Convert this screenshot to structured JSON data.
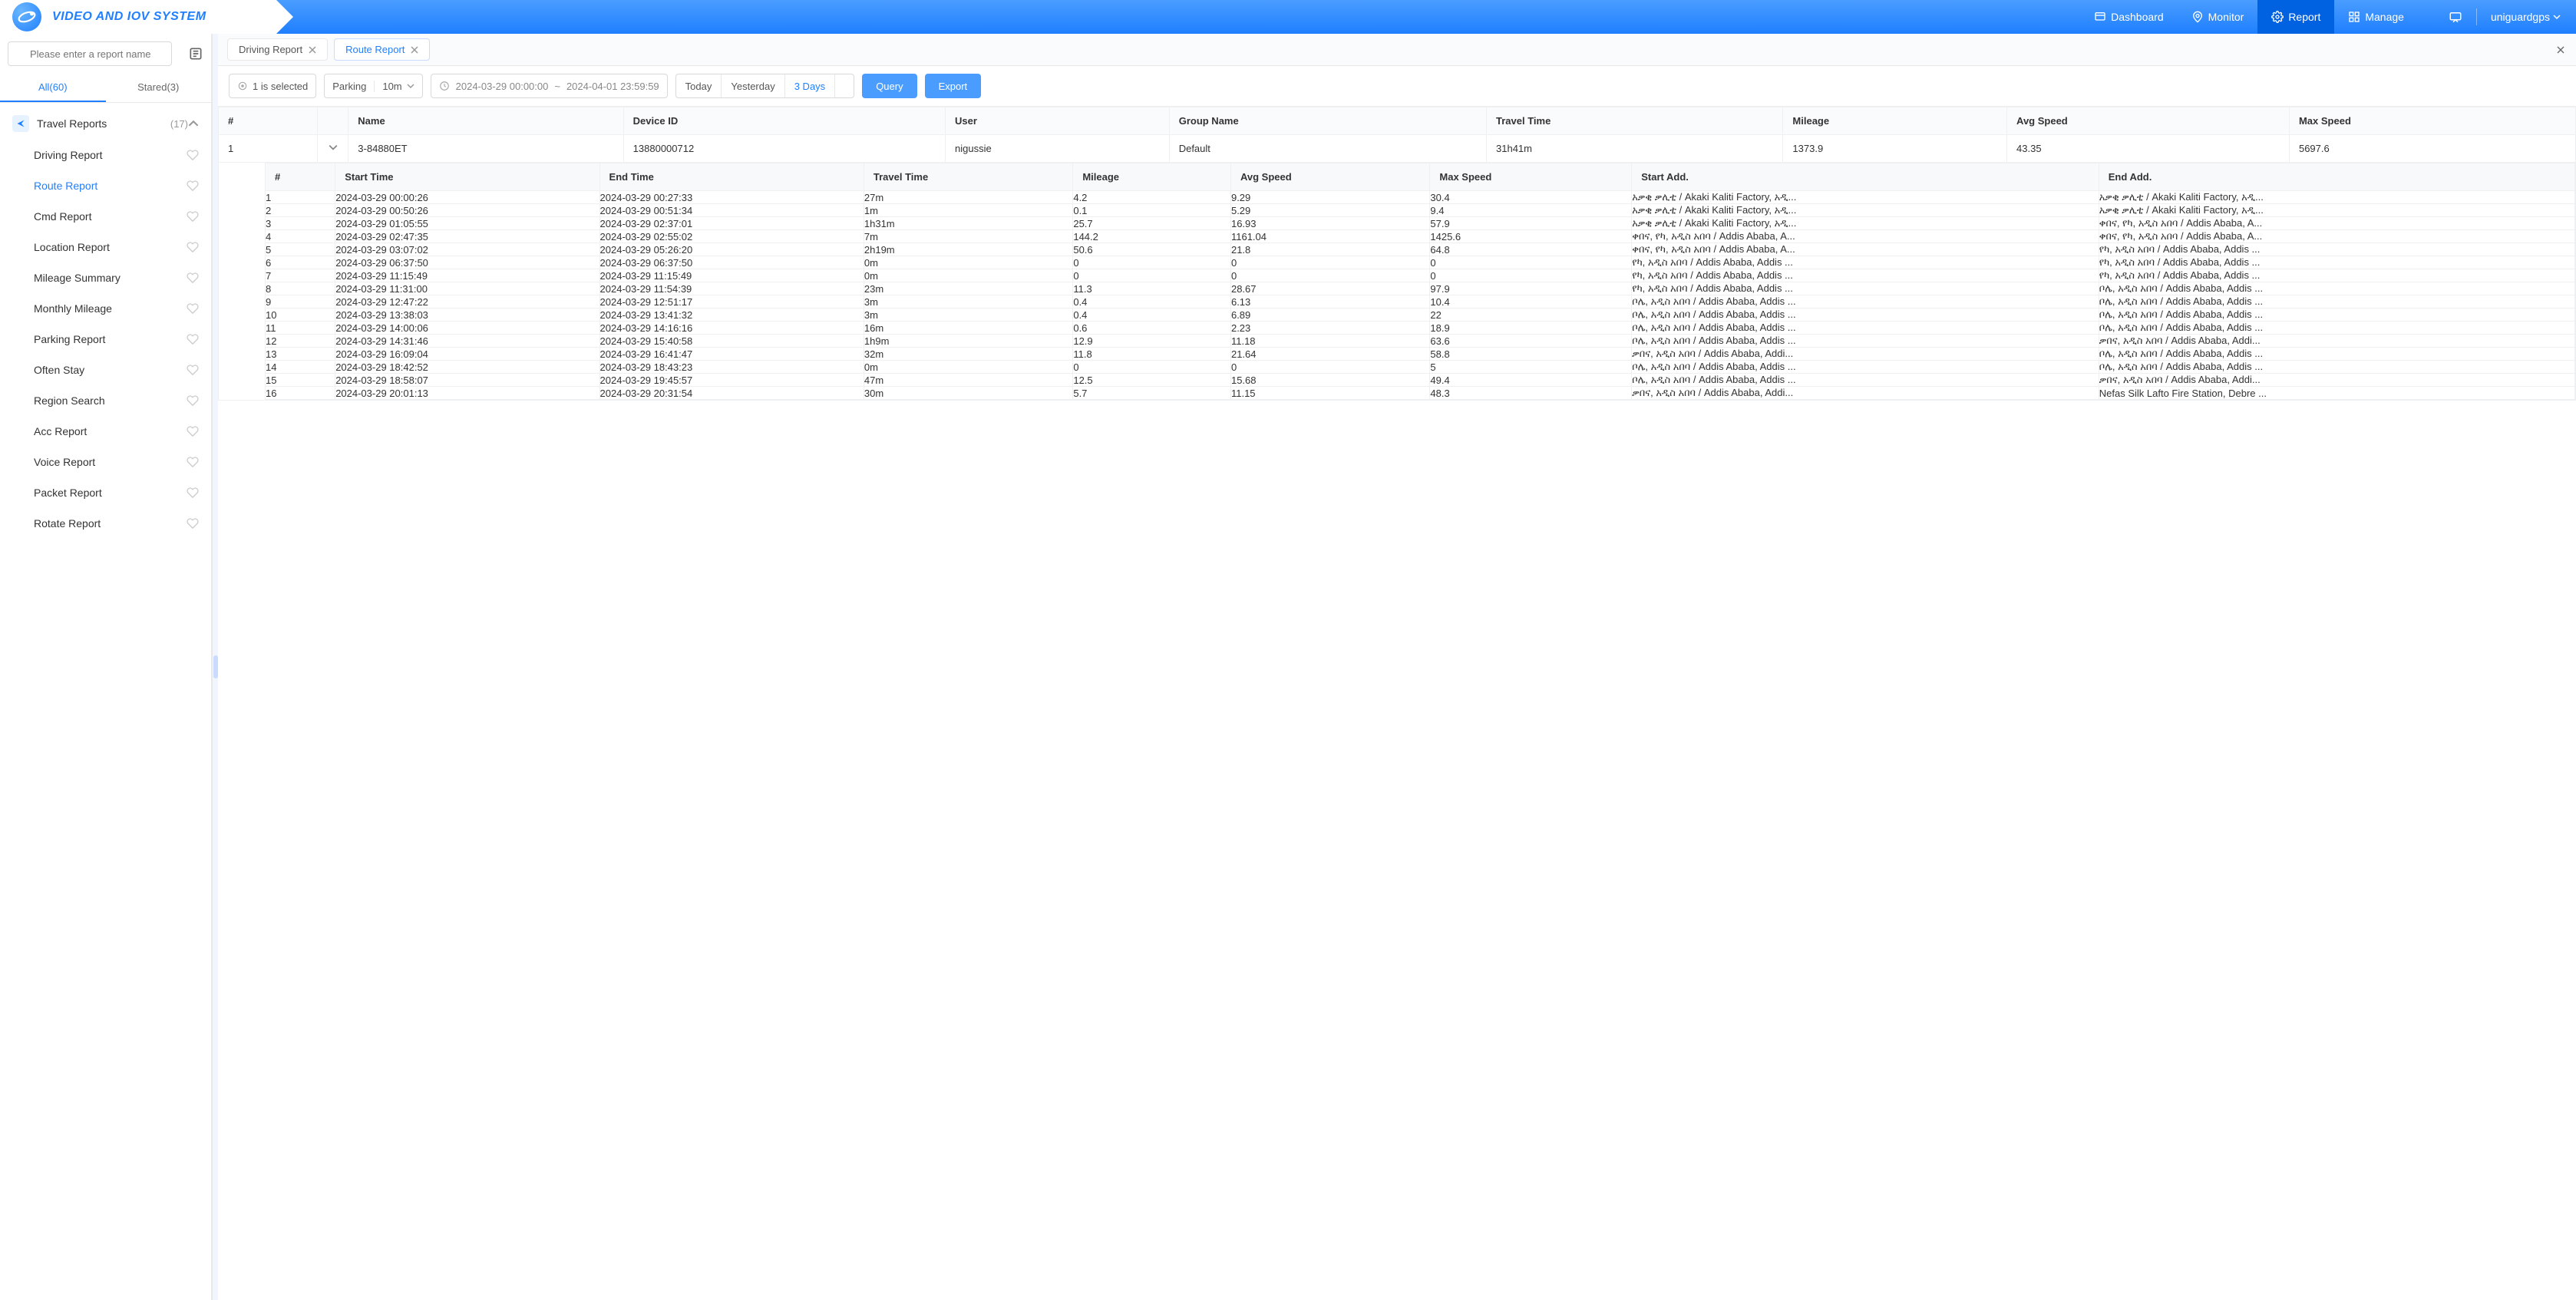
{
  "brand": "VIDEO AND IOV SYSTEM",
  "colors": {
    "primary": "#1f7fff",
    "primaryLight": "#4a9dff",
    "border": "#e8e8e8",
    "text": "#333333",
    "muted": "#999999",
    "bg": "#ffffff",
    "headerGradTop": "#4a9dff",
    "headerGradBottom": "#1f7fff"
  },
  "topnav": {
    "items": [
      {
        "label": "Dashboard",
        "active": false
      },
      {
        "label": "Monitor",
        "active": false
      },
      {
        "label": "Report",
        "active": true
      },
      {
        "label": "Manage",
        "active": false
      }
    ]
  },
  "user": {
    "name": "uniguardgps"
  },
  "sidebar": {
    "searchPlaceholder": "Please enter a report name",
    "tabs": {
      "all": "All(60)",
      "stared": "Stared(3)",
      "active": "all"
    },
    "category": {
      "label": "Travel Reports",
      "count": "(17)"
    },
    "items": [
      {
        "label": "Driving Report"
      },
      {
        "label": "Route Report",
        "active": true
      },
      {
        "label": "Cmd Report"
      },
      {
        "label": "Location Report"
      },
      {
        "label": "Mileage Summary"
      },
      {
        "label": "Monthly Mileage"
      },
      {
        "label": "Parking Report"
      },
      {
        "label": "Often Stay"
      },
      {
        "label": "Region Search"
      },
      {
        "label": "Acc Report"
      },
      {
        "label": "Voice Report"
      },
      {
        "label": "Packet Report"
      },
      {
        "label": "Rotate Report"
      }
    ]
  },
  "tabs": [
    {
      "label": "Driving Report",
      "active": false
    },
    {
      "label": "Route Report",
      "active": true
    }
  ],
  "toolbar": {
    "selectedText": "1 is selected",
    "parkingLabel": "Parking",
    "parkingDuration": "10m",
    "dateFrom": "2024-03-29 00:00:00",
    "dateTo": "2024-04-01 23:59:59",
    "quickRanges": [
      "Today",
      "Yesterday",
      "3 Days"
    ],
    "quickRangeActive": 2,
    "queryLabel": "Query",
    "exportLabel": "Export"
  },
  "outerTable": {
    "columns": [
      "#",
      "",
      "Name",
      "Device ID",
      "User",
      "Group Name",
      "Travel Time",
      "Mileage",
      "Avg Speed",
      "Max Speed"
    ],
    "row": {
      "index": "1",
      "name": "3-84880ET",
      "deviceId": "13880000712",
      "user": "nigussie",
      "group": "Default",
      "travelTime": "31h41m",
      "mileage": "1373.9",
      "avgSpeed": "43.35",
      "maxSpeed": "5697.6"
    }
  },
  "nestedTable": {
    "columns": [
      "#",
      "Start Time",
      "End Time",
      "Travel Time",
      "Mileage",
      "Avg Speed",
      "Max Speed",
      "Start Add.",
      "End Add."
    ],
    "rows": [
      [
        "1",
        "2024-03-29 00:00:26",
        "2024-03-29 00:27:33",
        "27m",
        "4.2",
        "9.29",
        "30.4",
        "አቃቂ ቃሊቲ / Akaki Kaliti Factory, አዲ...",
        "አቃቂ ቃሊቲ / Akaki Kaliti Factory, አዲ..."
      ],
      [
        "2",
        "2024-03-29 00:50:26",
        "2024-03-29 00:51:34",
        "1m",
        "0.1",
        "5.29",
        "9.4",
        "አቃቂ ቃሊቲ / Akaki Kaliti Factory, አዲ...",
        "አቃቂ ቃሊቲ / Akaki Kaliti Factory, አዲ..."
      ],
      [
        "3",
        "2024-03-29 01:05:55",
        "2024-03-29 02:37:01",
        "1h31m",
        "25.7",
        "16.93",
        "57.9",
        "አቃቂ ቃሊቲ / Akaki Kaliti Factory, አዲ...",
        "ቀበና, የካ, አዲስ አበባ / Addis Ababa, A..."
      ],
      [
        "4",
        "2024-03-29 02:47:35",
        "2024-03-29 02:55:02",
        "7m",
        "144.2",
        "1161.04",
        "1425.6",
        "ቀበና, የካ, አዲስ አበባ / Addis Ababa, A...",
        "ቀበና, የካ, አዲስ አበባ / Addis Ababa, A..."
      ],
      [
        "5",
        "2024-03-29 03:07:02",
        "2024-03-29 05:26:20",
        "2h19m",
        "50.6",
        "21.8",
        "64.8",
        "ቀበና, የካ, አዲስ አበባ / Addis Ababa, A...",
        "የካ, አዲስ አበባ / Addis Ababa, Addis ..."
      ],
      [
        "6",
        "2024-03-29 06:37:50",
        "2024-03-29 06:37:50",
        "0m",
        "0",
        "0",
        "0",
        "የካ, አዲስ አበባ / Addis Ababa, Addis ...",
        "የካ, አዲስ አበባ / Addis Ababa, Addis ..."
      ],
      [
        "7",
        "2024-03-29 11:15:49",
        "2024-03-29 11:15:49",
        "0m",
        "0",
        "0",
        "0",
        "የካ, አዲስ አበባ / Addis Ababa, Addis ...",
        "የካ, አዲስ አበባ / Addis Ababa, Addis ..."
      ],
      [
        "8",
        "2024-03-29 11:31:00",
        "2024-03-29 11:54:39",
        "23m",
        "11.3",
        "28.67",
        "97.9",
        "የካ, አዲስ አበባ / Addis Ababa, Addis ...",
        "ቦሌ, አዲስ አበባ / Addis Ababa, Addis ..."
      ],
      [
        "9",
        "2024-03-29 12:47:22",
        "2024-03-29 12:51:17",
        "3m",
        "0.4",
        "6.13",
        "10.4",
        "ቦሌ, አዲስ አበባ / Addis Ababa, Addis ...",
        "ቦሌ, አዲስ አበባ / Addis Ababa, Addis ..."
      ],
      [
        "10",
        "2024-03-29 13:38:03",
        "2024-03-29 13:41:32",
        "3m",
        "0.4",
        "6.89",
        "22",
        "ቦሌ, አዲስ አበባ / Addis Ababa, Addis ...",
        "ቦሌ, አዲስ አበባ / Addis Ababa, Addis ..."
      ],
      [
        "11",
        "2024-03-29 14:00:06",
        "2024-03-29 14:16:16",
        "16m",
        "0.6",
        "2.23",
        "18.9",
        "ቦሌ, አዲስ አበባ / Addis Ababa, Addis ...",
        "ቦሌ, አዲስ አበባ / Addis Ababa, Addis ..."
      ],
      [
        "12",
        "2024-03-29 14:31:46",
        "2024-03-29 15:40:58",
        "1h9m",
        "12.9",
        "11.18",
        "63.6",
        "ቦሌ, አዲስ አበባ / Addis Ababa, Addis ...",
        "ቃበና, አዲስ አበባ / Addis Ababa, Addi..."
      ],
      [
        "13",
        "2024-03-29 16:09:04",
        "2024-03-29 16:41:47",
        "32m",
        "11.8",
        "21.64",
        "58.8",
        "ቃበና, አዲስ አበባ / Addis Ababa, Addi...",
        "ቦሌ, አዲስ አበባ / Addis Ababa, Addis ..."
      ],
      [
        "14",
        "2024-03-29 18:42:52",
        "2024-03-29 18:43:23",
        "0m",
        "0",
        "0",
        "5",
        "ቦሌ, አዲስ አበባ / Addis Ababa, Addis ...",
        "ቦሌ, አዲስ አበባ / Addis Ababa, Addis ..."
      ],
      [
        "15",
        "2024-03-29 18:58:07",
        "2024-03-29 19:45:57",
        "47m",
        "12.5",
        "15.68",
        "49.4",
        "ቦሌ, አዲስ አበባ / Addis Ababa, Addis ...",
        "ቃበና, አዲስ አበባ / Addis Ababa, Addi..."
      ],
      [
        "16",
        "2024-03-29 20:01:13",
        "2024-03-29 20:31:54",
        "30m",
        "5.7",
        "11.15",
        "48.3",
        "ቃበና, አዲስ አበባ / Addis Ababa, Addi...",
        "Nefas Silk Lafto Fire Station, Debre ..."
      ]
    ]
  }
}
